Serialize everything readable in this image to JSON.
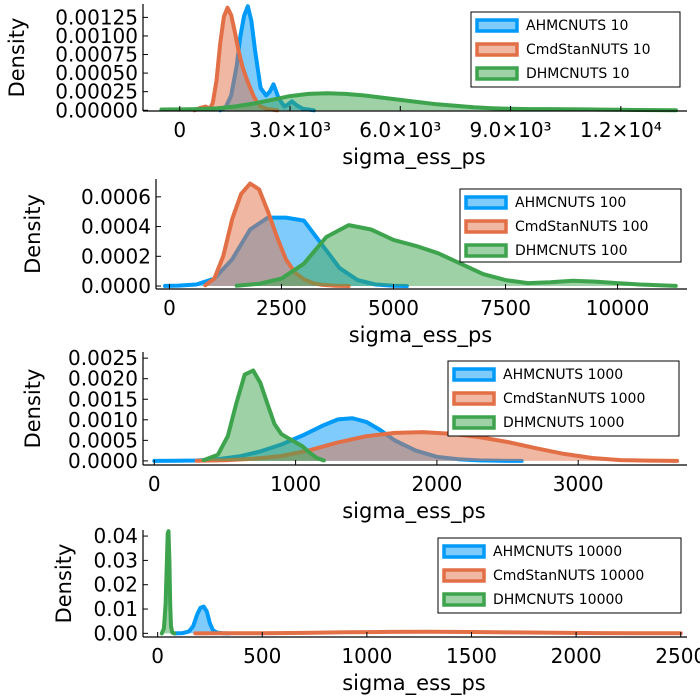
{
  "colors": {
    "AHMCNUTS": "#009af9",
    "CmdStanNUTS": "#e26f46",
    "DHMCNUTS": "#3da44d"
  },
  "chart_data": [
    {
      "type": "area",
      "xlabel": "sigma_ess_ps",
      "ylabel": "Density",
      "xlim": [
        -1000,
        13800
      ],
      "ylim": [
        -1e-05,
        0.00143
      ],
      "xticks": [
        {
          "value": 0,
          "label": "0"
        },
        {
          "value": 3000,
          "label": "3.0×10³"
        },
        {
          "value": 6000,
          "label": "6.0×10³"
        },
        {
          "value": 9000,
          "label": "9.0×10³"
        },
        {
          "value": 12000,
          "label": "1.2×10⁴"
        }
      ],
      "yticks": [
        {
          "value": 0,
          "label": "0.00000"
        },
        {
          "value": 0.00025,
          "label": "0.00025"
        },
        {
          "value": 0.0005,
          "label": "0.00050"
        },
        {
          "value": 0.00075,
          "label": "0.00075"
        },
        {
          "value": 0.001,
          "label": "0.00100"
        },
        {
          "value": 0.00125,
          "label": "0.00125"
        }
      ],
      "legend_position": "top-right",
      "series": [
        {
          "name": "AHMCNUTS 10",
          "key": "AHMCNUTS",
          "x": [
            1100,
            1250,
            1400,
            1550,
            1650,
            1750,
            1850,
            1950,
            2050,
            2200,
            2350,
            2450,
            2550,
            2700,
            2850,
            2950,
            3050,
            3200,
            3350,
            3500,
            3650
          ],
          "y": [
            0,
            4e-05,
            0.0002,
            0.0006,
            0.001,
            0.00127,
            0.0014,
            0.0012,
            0.0008,
            0.0003,
            0.0002,
            0.00025,
            0.00035,
            0.00015,
            5e-05,
            8e-05,
            0.00012,
            6e-05,
            2e-05,
            1e-05,
            0
          ]
        },
        {
          "name": "CmdStanNUTS 10",
          "key": "CmdStanNUTS",
          "x": [
            400,
            550,
            700,
            820,
            900,
            1000,
            1100,
            1200,
            1300,
            1400,
            1500,
            1600,
            1700,
            1800,
            1900,
            2000,
            2100,
            2200,
            2350,
            2500,
            2650
          ],
          "y": [
            0,
            3e-05,
            5e-05,
            2e-05,
            0.0001,
            0.0004,
            0.0009,
            0.00126,
            0.00138,
            0.00128,
            0.00105,
            0.0008,
            0.0006,
            0.00045,
            0.00032,
            0.0002,
            0.00011,
            5e-05,
            2e-05,
            1e-05,
            0
          ]
        },
        {
          "name": "DHMCNUTS 10",
          "key": "DHMCNUTS",
          "x": [
            -500,
            0,
            500,
            1000,
            1500,
            2000,
            2500,
            3000,
            3500,
            4000,
            4500,
            5000,
            5500,
            6000,
            6500,
            7000,
            7500,
            8000,
            8500,
            9000,
            9500,
            10000,
            10500,
            11000,
            11500,
            12000,
            12500,
            13000,
            13500
          ],
          "y": [
            1e-05,
            1.2e-05,
            1.5e-05,
            2.5e-05,
            5e-05,
            9e-05,
            0.00014,
            0.00019,
            0.00022,
            0.000228,
            0.00022,
            0.0002,
            0.00017,
            0.00014,
            0.00011,
            8e-05,
            6e-05,
            4e-05,
            2.8e-05,
            2e-05,
            1.6e-05,
            1.5e-05,
            1.4e-05,
            1.2e-05,
            9e-06,
            6e-06,
            4e-06,
            2e-06,
            1e-06
          ]
        }
      ]
    },
    {
      "type": "area",
      "xlabel": "sigma_ess_ps",
      "ylabel": "Density",
      "xlim": [
        -300,
        11550
      ],
      "ylim": [
        -2e-05,
        0.00072
      ],
      "xticks": [
        {
          "value": 0,
          "label": "0"
        },
        {
          "value": 2500,
          "label": "2500"
        },
        {
          "value": 5000,
          "label": "5000"
        },
        {
          "value": 7500,
          "label": "7500"
        },
        {
          "value": 10000,
          "label": "10000"
        }
      ],
      "yticks": [
        {
          "value": 0,
          "label": "0.0000"
        },
        {
          "value": 0.0002,
          "label": "0.0002"
        },
        {
          "value": 0.0004,
          "label": "0.0004"
        },
        {
          "value": 0.0006,
          "label": "0.0006"
        }
      ],
      "legend_position": "top-right",
      "series": [
        {
          "name": "AHMCNUTS 100",
          "key": "AHMCNUTS",
          "x": [
            -100,
            200,
            600,
            1000,
            1400,
            1800,
            2200,
            2600,
            3000,
            3400,
            3800,
            4200,
            4600,
            5000,
            5300
          ],
          "y": [
            1e-06,
            3e-06,
            1e-05,
            5e-05,
            0.00018,
            0.00038,
            0.00046,
            0.00046,
            0.00044,
            0.00028,
            0.00012,
            4e-05,
            1e-05,
            2e-06,
            0
          ]
        },
        {
          "name": "CmdStanNUTS 100",
          "key": "CmdStanNUTS",
          "x": [
            800,
            1000,
            1200,
            1400,
            1600,
            1800,
            2000,
            2200,
            2400,
            2600,
            2800,
            3000,
            3200,
            3400,
            3700,
            4000
          ],
          "y": [
            5e-06,
            5e-05,
            0.0002,
            0.00045,
            0.00062,
            0.00069,
            0.00065,
            0.0005,
            0.00033,
            0.00018,
            9e-05,
            4.5e-05,
            2e-05,
            8e-06,
            2e-06,
            0
          ]
        },
        {
          "name": "DHMCNUTS 100",
          "key": "DHMCNUTS",
          "x": [
            1500,
            2000,
            2500,
            3000,
            3500,
            4000,
            4500,
            5000,
            5500,
            6000,
            6500,
            7000,
            7500,
            8000,
            8500,
            9000,
            9500,
            10000,
            10500,
            11000,
            11300
          ],
          "y": [
            2e-06,
            1.5e-05,
            5e-05,
            0.00015,
            0.00033,
            0.00041,
            0.00038,
            0.00031,
            0.00027,
            0.00022,
            0.00015,
            8e-05,
            4e-05,
            2e-05,
            2.5e-05,
            3.5e-05,
            3e-05,
            2e-05,
            1e-05,
            4e-06,
            1e-06
          ]
        }
      ]
    },
    {
      "type": "area",
      "xlabel": "sigma_ess_ps",
      "ylabel": "Density",
      "xlim": [
        -80,
        3770
      ],
      "ylim": [
        -0.0001,
        0.00265
      ],
      "xticks": [
        {
          "value": 0,
          "label": "0"
        },
        {
          "value": 1000,
          "label": "1000"
        },
        {
          "value": 2000,
          "label": "2000"
        },
        {
          "value": 3000,
          "label": "3000"
        }
      ],
      "yticks": [
        {
          "value": 0,
          "label": "0.0000"
        },
        {
          "value": 0.0005,
          "label": "0.0005"
        },
        {
          "value": 0.001,
          "label": "0.0010"
        },
        {
          "value": 0.0015,
          "label": "0.0015"
        },
        {
          "value": 0.002,
          "label": "0.0020"
        },
        {
          "value": 0.0025,
          "label": "0.0025"
        }
      ],
      "legend_position": "top-right",
      "series": [
        {
          "name": "AHMCNUTS 1000",
          "key": "AHMCNUTS",
          "x": [
            0,
            150,
            300,
            450,
            600,
            750,
            900,
            1050,
            1200,
            1300,
            1400,
            1500,
            1600,
            1700,
            1850,
            2000,
            2150,
            2300,
            2450,
            2600
          ],
          "y": [
            0,
            2e-06,
            1e-05,
            4e-05,
            0.00011,
            0.00023,
            0.0004,
            0.00062,
            0.00087,
            0.00101,
            0.00104,
            0.00095,
            0.00075,
            0.0005,
            0.00025,
            0.0001,
            4e-05,
            1.2e-05,
            3e-06,
            0
          ]
        },
        {
          "name": "CmdStanNUTS 1000",
          "key": "CmdStanNUTS",
          "x": [
            300,
            500,
            700,
            900,
            1100,
            1300,
            1500,
            1700,
            1900,
            2100,
            2300,
            2500,
            2700,
            2900,
            3100,
            3300,
            3500,
            3700
          ],
          "y": [
            3e-06,
            1.5e-05,
            5e-05,
            0.00012,
            0.00026,
            0.00045,
            0.0006,
            0.00068,
            0.0007,
            0.00066,
            0.00058,
            0.00046,
            0.00031,
            0.00017,
            7e-05,
            2e-05,
            6e-06,
            0
          ]
        },
        {
          "name": "DHMCNUTS 1000",
          "key": "DHMCNUTS",
          "x": [
            350,
            450,
            520,
            580,
            640,
            700,
            750,
            800,
            850,
            900,
            950,
            1000,
            1050,
            1100,
            1150,
            1200
          ],
          "y": [
            2e-05,
            0.00015,
            0.0006,
            0.0014,
            0.0021,
            0.0022,
            0.0019,
            0.0014,
            0.0009,
            0.00065,
            0.00055,
            0.00045,
            0.00035,
            0.0002,
            7e-05,
            1e-05
          ]
        }
      ]
    },
    {
      "type": "area",
      "xlabel": "sigma_ess_ps",
      "ylabel": "Density",
      "xlim": [
        -70,
        2530
      ],
      "ylim": [
        -0.0015,
        0.0425
      ],
      "xticks": [
        {
          "value": 0,
          "label": "0"
        },
        {
          "value": 500,
          "label": "500"
        },
        {
          "value": 1000,
          "label": "1000"
        },
        {
          "value": 1500,
          "label": "1500"
        },
        {
          "value": 2000,
          "label": "2000"
        },
        {
          "value": 2500,
          "label": "2500"
        }
      ],
      "yticks": [
        {
          "value": 0,
          "label": "0.00"
        },
        {
          "value": 0.01,
          "label": "0.01"
        },
        {
          "value": 0.02,
          "label": "0.02"
        },
        {
          "value": 0.03,
          "label": "0.03"
        },
        {
          "value": 0.04,
          "label": "0.04"
        }
      ],
      "legend_position": "top-right",
      "series": [
        {
          "name": "AHMCNUTS 10000",
          "key": "AHMCNUTS",
          "x": [
            80,
            120,
            150,
            170,
            190,
            205,
            220,
            235,
            250,
            265,
            285,
            310,
            340
          ],
          "y": [
            0,
            0.0001,
            0.0008,
            0.003,
            0.008,
            0.0105,
            0.011,
            0.009,
            0.004,
            0.0012,
            0.0003,
            5e-05,
            0
          ]
        },
        {
          "name": "CmdStanNUTS 10000",
          "key": "CmdStanNUTS",
          "x": [
            180,
            300,
            500,
            700,
            900,
            1100,
            1300,
            1500,
            1700,
            1900,
            2100,
            2300,
            2500
          ],
          "y": [
            0,
            2e-05,
            8e-05,
            0.0002,
            0.00045,
            0.0006,
            0.00062,
            0.00055,
            0.0004,
            0.00025,
            0.00012,
            4e-05,
            1e-05
          ]
        },
        {
          "name": "DHMCNUTS 10000",
          "key": "DHMCNUTS",
          "x": [
            20,
            30,
            38,
            44,
            48,
            52,
            56,
            60,
            64,
            70,
            80
          ],
          "y": [
            0,
            0.002,
            0.012,
            0.03,
            0.041,
            0.042,
            0.03,
            0.012,
            0.003,
            0.0003,
            0
          ]
        }
      ]
    }
  ]
}
